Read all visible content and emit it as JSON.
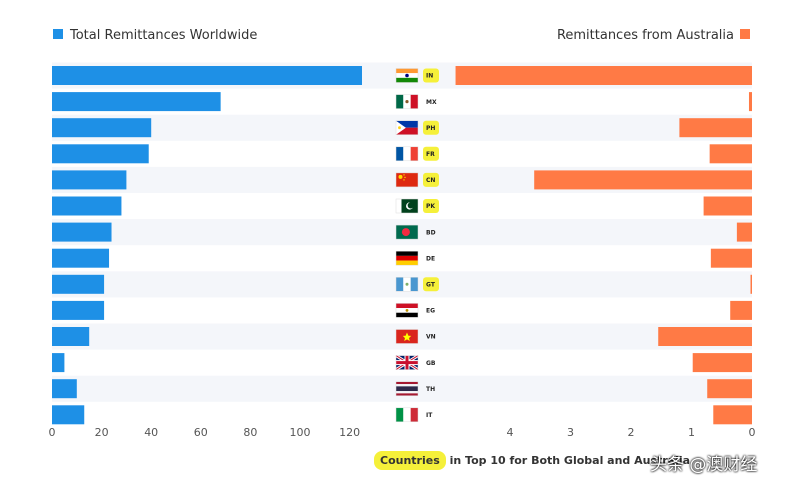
{
  "chart_data": {
    "type": "bar",
    "layout": "diverging-horizontal",
    "categories": [
      "IN",
      "MX",
      "PH",
      "FR",
      "CN",
      "PK",
      "BD",
      "DE",
      "GT",
      "EG",
      "VN",
      "GB",
      "TH",
      "IT"
    ],
    "highlighted_categories": [
      "IN",
      "PH",
      "FR",
      "CN",
      "PK",
      "GT"
    ],
    "series": [
      {
        "name": "Total Remittances Worldwide",
        "color": "#1e90e6",
        "side": "left",
        "values": [
          125,
          68,
          40,
          39,
          30,
          28,
          24,
          23,
          21,
          21,
          15,
          5,
          10,
          13
        ],
        "xlim": [
          0,
          130
        ]
      },
      {
        "name": "Remittances from Australia",
        "color": "#ff7a45",
        "side": "right",
        "values": [
          4.9,
          0.05,
          1.2,
          0.7,
          3.6,
          0.8,
          0.25,
          0.68,
          0.01,
          0.36,
          1.55,
          0.98,
          0.74,
          0.64
        ],
        "xlim": [
          0,
          4.9
        ]
      }
    ],
    "left_ticks": [
      "0",
      "20",
      "40",
      "60",
      "80",
      "100",
      "120"
    ],
    "left_tick_values": [
      0,
      20,
      40,
      60,
      80,
      100,
      120
    ],
    "right_ticks": [
      "4",
      "3",
      "2",
      "1",
      "0"
    ],
    "right_tick_values": [
      4,
      3,
      2,
      1,
      0
    ],
    "legend": "top",
    "grid": false
  },
  "footer": {
    "highlight": "Countries",
    "text": " in Top 10 for Both Global and Australia"
  },
  "watermark": "头条 @澳财经"
}
